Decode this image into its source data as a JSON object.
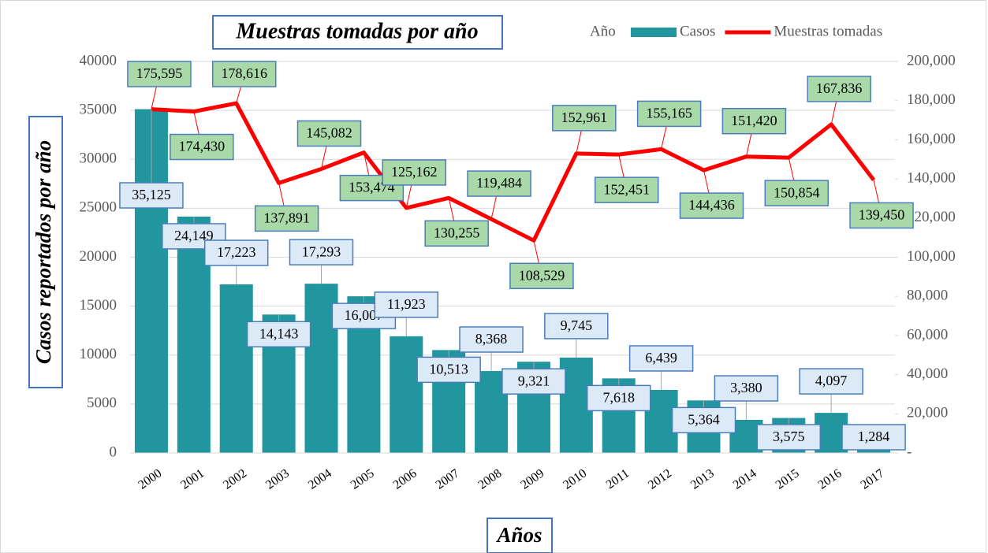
{
  "chart_data": {
    "type": "bar_line",
    "title": "Muestras tomadas por año",
    "y_label": "Casos reportados por año",
    "x_label": "Años",
    "legend_title": "Año",
    "categories": [
      "2000",
      "2001",
      "2002",
      "2003",
      "2004",
      "2005",
      "2006",
      "2007",
      "2008",
      "2009",
      "2010",
      "2011",
      "2012",
      "2013",
      "2014",
      "2015",
      "2016",
      "2017"
    ],
    "series": [
      {
        "name": "Casos",
        "type": "bar",
        "color": "#21969f",
        "values": [
          35125,
          24149,
          17223,
          14143,
          17293,
          16007,
          11923,
          10513,
          8368,
          9321,
          9745,
          7618,
          6439,
          5364,
          3380,
          3575,
          4097,
          1284
        ],
        "value_labels": [
          "35,125",
          "24,149",
          "17,223",
          "14,143",
          "17,293",
          "16,007",
          "11,923",
          "10,513",
          "8,368",
          "9,321",
          "9,745",
          "7,618",
          "6,439",
          "5,364",
          "3,380",
          "3,575",
          "4,097",
          "1,284"
        ]
      },
      {
        "name": "Muestras tomadas",
        "type": "line",
        "axis": "y2",
        "color": "#ff0000",
        "values": [
          175595,
          174430,
          178616,
          137891,
          145082,
          153474,
          125162,
          130255,
          119484,
          108529,
          152961,
          152451,
          155165,
          144436,
          151420,
          150854,
          167836,
          139450
        ],
        "value_labels": [
          "175,595",
          "174,430",
          "178,616",
          "137,891",
          "145,082",
          "153,474",
          "125,162",
          "130,255",
          "119,484",
          "108,529",
          "152,961",
          "152,451",
          "155,165",
          "144,436",
          "151,420",
          "150,854",
          "167,836",
          "139,450"
        ]
      }
    ],
    "ylim": [
      0,
      40000
    ],
    "yticks": [
      0,
      5000,
      10000,
      15000,
      20000,
      25000,
      30000,
      35000,
      40000
    ],
    "y2lim": [
      0,
      200000
    ],
    "y2ticks": [
      {
        "value": 0,
        "label": "-"
      },
      {
        "value": 20000,
        "label": "20,000"
      },
      {
        "value": 40000,
        "label": "40,000"
      },
      {
        "value": 60000,
        "label": "60,000"
      },
      {
        "value": 80000,
        "label": "80,000"
      },
      {
        "value": 100000,
        "label": "100,000"
      },
      {
        "value": 120000,
        "label": "120,000"
      },
      {
        "value": 140000,
        "label": "140,000"
      },
      {
        "value": 160000,
        "label": "160,000"
      },
      {
        "value": 180000,
        "label": "180,000"
      },
      {
        "value": 200000,
        "label": "200,000"
      }
    ],
    "grid": true,
    "legend": "top"
  }
}
